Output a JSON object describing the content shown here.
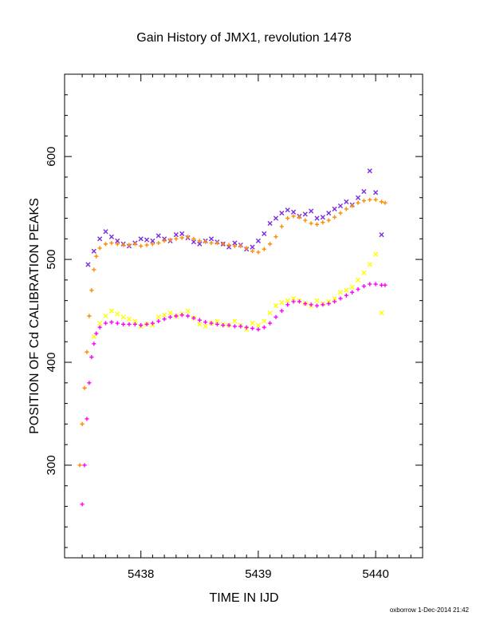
{
  "chart_data": {
    "type": "scatter",
    "title": "Gain History of JMX1, revolution 1478",
    "xlabel": "TIME IN IJD",
    "ylabel": "POSITION OF Cd CALIBRATION PEAKS",
    "xlim": [
      5437.35,
      5440.4
    ],
    "ylim": [
      210,
      680
    ],
    "x_ticks": [
      5438,
      5439,
      5440
    ],
    "y_ticks": [
      300,
      400,
      500,
      600
    ],
    "grid": false,
    "legend": "none",
    "series": [
      {
        "color": "#7a2de0",
        "marker": "x",
        "x": [
          5437.55,
          5437.6,
          5437.65,
          5437.7,
          5437.75,
          5437.8,
          5437.85,
          5437.9,
          5437.95,
          5438.0,
          5438.05,
          5438.1,
          5438.15,
          5438.2,
          5438.25,
          5438.3,
          5438.35,
          5438.4,
          5438.45,
          5438.5,
          5438.55,
          5438.6,
          5438.65,
          5438.7,
          5438.75,
          5438.8,
          5438.85,
          5438.9,
          5438.95,
          5439.0,
          5439.05,
          5439.1,
          5439.15,
          5439.2,
          5439.25,
          5439.3,
          5439.35,
          5439.4,
          5439.45,
          5439.5,
          5439.55,
          5439.6,
          5439.65,
          5439.7,
          5439.75,
          5439.8,
          5439.85,
          5439.9,
          5439.95,
          5440.0,
          5440.05
        ],
        "values": [
          495,
          508,
          520,
          527,
          522,
          518,
          515,
          513,
          516,
          520,
          519,
          518,
          523,
          520,
          518,
          524,
          525,
          521,
          517,
          515,
          518,
          520,
          517,
          515,
          512,
          516,
          514,
          510,
          512,
          518,
          525,
          535,
          540,
          545,
          548,
          546,
          542,
          544,
          547,
          540,
          541,
          545,
          549,
          552,
          556,
          553,
          560,
          566,
          586,
          565,
          524
        ]
      },
      {
        "color": "#ff8c00",
        "marker": "+",
        "x": [
          5437.48,
          5437.5,
          5437.52,
          5437.54,
          5437.56,
          5437.58,
          5437.6,
          5437.62,
          5437.65,
          5437.7,
          5437.75,
          5437.8,
          5437.85,
          5437.9,
          5437.95,
          5438.0,
          5438.05,
          5438.1,
          5438.15,
          5438.2,
          5438.25,
          5438.3,
          5438.35,
          5438.4,
          5438.45,
          5438.5,
          5438.55,
          5438.6,
          5438.65,
          5438.7,
          5438.75,
          5438.8,
          5438.85,
          5438.9,
          5438.95,
          5439.0,
          5439.05,
          5439.1,
          5439.15,
          5439.2,
          5439.25,
          5439.3,
          5439.35,
          5439.4,
          5439.45,
          5439.5,
          5439.55,
          5439.6,
          5439.65,
          5439.7,
          5439.75,
          5439.8,
          5439.85,
          5439.9,
          5439.95,
          5440.0,
          5440.05,
          5440.08
        ],
        "values": [
          300,
          340,
          375,
          410,
          445,
          470,
          490,
          503,
          511,
          515,
          516,
          515,
          514,
          514,
          515,
          513,
          514,
          515,
          516,
          518,
          519,
          520,
          521,
          522,
          520,
          518,
          517,
          516,
          516,
          515,
          514,
          513,
          513,
          511,
          508,
          507,
          510,
          515,
          522,
          532,
          540,
          542,
          541,
          538,
          535,
          534,
          536,
          538,
          541,
          545,
          549,
          552,
          555,
          557,
          558,
          558,
          556,
          555
        ]
      },
      {
        "color": "#ffff00",
        "marker": "x",
        "x": [
          5437.6,
          5437.65,
          5437.7,
          5437.75,
          5437.8,
          5437.85,
          5437.9,
          5437.95,
          5438.0,
          5438.05,
          5438.1,
          5438.15,
          5438.2,
          5438.25,
          5438.3,
          5438.35,
          5438.4,
          5438.45,
          5438.5,
          5438.55,
          5438.6,
          5438.65,
          5438.7,
          5438.75,
          5438.8,
          5438.85,
          5438.9,
          5438.95,
          5439.0,
          5439.05,
          5439.1,
          5439.15,
          5439.2,
          5439.25,
          5439.3,
          5439.35,
          5439.4,
          5439.45,
          5439.5,
          5439.55,
          5439.6,
          5439.65,
          5439.7,
          5439.75,
          5439.8,
          5439.85,
          5439.9,
          5439.95,
          5440.0,
          5440.05
        ],
        "values": [
          425,
          438,
          445,
          450,
          447,
          444,
          442,
          440,
          435,
          437,
          436,
          444,
          446,
          448,
          445,
          447,
          450,
          443,
          437,
          435,
          438,
          440,
          437,
          436,
          440,
          436,
          432,
          438,
          436,
          440,
          448,
          455,
          458,
          460,
          462,
          460,
          457,
          455,
          460,
          457,
          459,
          462,
          468,
          470,
          473,
          480,
          487,
          495,
          505,
          448
        ]
      },
      {
        "color": "#ff00ff",
        "marker": "+",
        "x": [
          5437.5,
          5437.52,
          5437.54,
          5437.56,
          5437.58,
          5437.6,
          5437.62,
          5437.65,
          5437.7,
          5437.75,
          5437.8,
          5437.85,
          5437.9,
          5437.95,
          5438.0,
          5438.05,
          5438.1,
          5438.15,
          5438.2,
          5438.25,
          5438.3,
          5438.35,
          5438.4,
          5438.45,
          5438.5,
          5438.55,
          5438.6,
          5438.65,
          5438.7,
          5438.75,
          5438.8,
          5438.85,
          5438.9,
          5438.95,
          5439.0,
          5439.05,
          5439.1,
          5439.15,
          5439.2,
          5439.25,
          5439.3,
          5439.35,
          5439.4,
          5439.45,
          5439.5,
          5439.55,
          5439.6,
          5439.65,
          5439.7,
          5439.75,
          5439.8,
          5439.85,
          5439.9,
          5439.95,
          5440.0,
          5440.05,
          5440.08
        ],
        "values": [
          262,
          300,
          345,
          380,
          405,
          418,
          428,
          434,
          438,
          439,
          438,
          437,
          437,
          437,
          436,
          437,
          438,
          440,
          442,
          444,
          445,
          446,
          445,
          443,
          441,
          439,
          438,
          437,
          436,
          436,
          435,
          435,
          434,
          433,
          432,
          434,
          438,
          444,
          450,
          456,
          459,
          459,
          457,
          456,
          455,
          456,
          457,
          459,
          462,
          465,
          468,
          471,
          474,
          476,
          476,
          475,
          475
        ]
      }
    ]
  },
  "footer": "oxborrow 1-Dec-2014 21:42"
}
